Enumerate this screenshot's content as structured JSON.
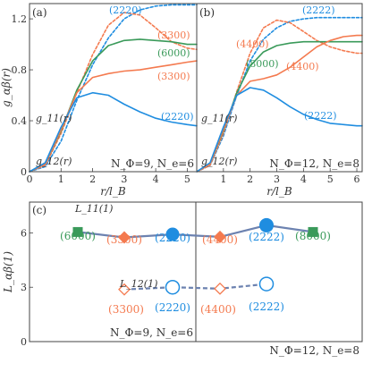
{
  "colors": {
    "blue": "#1f8de0",
    "orange": "#f47a4f",
    "green": "#3a9a5a",
    "slate": "#6c82b0",
    "axis": "#444444"
  },
  "chart_data": [
    {
      "type": "line",
      "panel": "(a)",
      "xlabel": "r/l_B",
      "ylabel": "g_αβ(r)",
      "xlim": [
        0,
        5.3
      ],
      "ylim": [
        0,
        1.32
      ],
      "xticks": [
        0,
        1,
        2,
        3,
        4,
        5
      ],
      "yticks": [
        0,
        0.4,
        0.8,
        1.2
      ],
      "ytick_labels": [
        "0",
        "0.4",
        "0.8",
        "1.2"
      ],
      "params": "N_Φ=9, N_e=6",
      "curve_labels": [
        "g_11(r)",
        "g_12(r)"
      ],
      "series": [
        {
          "name": "(2220)",
          "style": "dashed",
          "color": "blue",
          "x": [
            0,
            0.5,
            1,
            1.5,
            2,
            2.5,
            3,
            3.5,
            4,
            4.5,
            5,
            5.3
          ],
          "y": [
            0,
            0.04,
            0.24,
            0.56,
            0.84,
            1.05,
            1.2,
            1.27,
            1.3,
            1.31,
            1.31,
            1.31
          ]
        },
        {
          "name": "(3300)",
          "style": "dashed",
          "color": "orange",
          "x": [
            0,
            0.5,
            1,
            1.5,
            2,
            2.5,
            3,
            3.5,
            4,
            4.5,
            5,
            5.3
          ],
          "y": [
            0,
            0.05,
            0.3,
            0.62,
            0.92,
            1.15,
            1.25,
            1.23,
            1.13,
            1.02,
            0.97,
            0.96
          ]
        },
        {
          "name": "(6000)",
          "style": "solid",
          "color": "green",
          "x": [
            0,
            0.5,
            1,
            1.5,
            2,
            2.5,
            3,
            3.5,
            4,
            4.5,
            5,
            5.3
          ],
          "y": [
            0,
            0.06,
            0.32,
            0.64,
            0.87,
            0.99,
            1.03,
            1.04,
            1.03,
            1.02,
            1.0,
            1.0
          ]
        },
        {
          "name": "(3300)",
          "style": "solid",
          "color": "orange",
          "x": [
            0,
            0.5,
            1,
            1.5,
            2,
            2.5,
            3,
            3.5,
            4,
            4.5,
            5,
            5.3
          ],
          "y": [
            0,
            0.06,
            0.33,
            0.62,
            0.74,
            0.77,
            0.79,
            0.8,
            0.82,
            0.84,
            0.86,
            0.87
          ]
        },
        {
          "name": "(2220)",
          "style": "solid",
          "color": "blue",
          "x": [
            0,
            0.5,
            1,
            1.5,
            2,
            2.5,
            3,
            3.5,
            4,
            4.5,
            5,
            5.3
          ],
          "y": [
            0,
            0.07,
            0.35,
            0.58,
            0.62,
            0.6,
            0.53,
            0.47,
            0.42,
            0.39,
            0.37,
            0.36
          ]
        }
      ]
    },
    {
      "type": "line",
      "panel": "(b)",
      "xlabel": "r/l_B",
      "xlim": [
        0,
        6.2
      ],
      "ylim": [
        0,
        1.32
      ],
      "xticks": [
        1,
        2,
        3,
        4,
        5,
        6
      ],
      "params": "N_Φ=12, N_e=8",
      "curve_labels": [
        "g_11(r)",
        "g_12(r)"
      ],
      "series": [
        {
          "name": "(2222)",
          "style": "dashed",
          "color": "blue",
          "x": [
            0,
            0.5,
            1,
            1.5,
            2,
            2.5,
            3,
            3.5,
            4,
            4.5,
            5,
            5.5,
            6,
            6.2
          ],
          "y": [
            0,
            0.05,
            0.28,
            0.6,
            0.87,
            1.04,
            1.13,
            1.18,
            1.2,
            1.21,
            1.21,
            1.21,
            1.21,
            1.21
          ]
        },
        {
          "name": "(4400)",
          "style": "dashed",
          "color": "orange",
          "x": [
            0,
            0.5,
            1,
            1.5,
            2,
            2.5,
            3,
            3.5,
            4,
            4.5,
            5,
            5.5,
            6,
            6.2
          ],
          "y": [
            0,
            0.05,
            0.3,
            0.63,
            0.93,
            1.13,
            1.19,
            1.17,
            1.1,
            1.03,
            0.98,
            0.95,
            0.93,
            0.93
          ]
        },
        {
          "name": "(8000)",
          "style": "solid",
          "color": "green",
          "x": [
            0,
            0.5,
            1,
            1.5,
            2,
            2.5,
            3,
            3.5,
            4,
            4.5,
            5,
            5.5,
            6,
            6.2
          ],
          "y": [
            0,
            0.06,
            0.32,
            0.62,
            0.83,
            0.94,
            0.99,
            1.01,
            1.02,
            1.02,
            1.02,
            1.02,
            1.02,
            1.02
          ]
        },
        {
          "name": "(4400)",
          "style": "solid",
          "color": "orange",
          "x": [
            0,
            0.5,
            1,
            1.5,
            2,
            2.5,
            3,
            3.5,
            4,
            4.5,
            5,
            5.5,
            6,
            6.2
          ],
          "y": [
            0,
            0.06,
            0.33,
            0.6,
            0.71,
            0.73,
            0.76,
            0.82,
            0.9,
            0.98,
            1.03,
            1.06,
            1.07,
            1.07
          ]
        },
        {
          "name": "(2222)",
          "style": "solid",
          "color": "blue",
          "x": [
            0,
            0.5,
            1,
            1.5,
            2,
            2.5,
            3,
            3.5,
            4,
            4.5,
            5,
            5.5,
            6,
            6.2
          ],
          "y": [
            0,
            0.07,
            0.35,
            0.6,
            0.66,
            0.64,
            0.58,
            0.51,
            0.45,
            0.41,
            0.38,
            0.37,
            0.36,
            0.36
          ]
        }
      ]
    },
    {
      "type": "scatter",
      "panel": "(c)",
      "ylabel": "L_αβ(1)",
      "ylim": [
        0,
        7.7
      ],
      "yticks": [
        0,
        3,
        6
      ],
      "ytick_labels": [
        "0",
        "3",
        "6"
      ],
      "categories": [
        "(6000)",
        "(3300)",
        "(2220)",
        "(4400)",
        "(2222)",
        "(8000)"
      ],
      "params_left": "N_Φ=9, N_e=6",
      "params_right": "N_Φ=12, N_e=8",
      "series": [
        {
          "name": "L_11(1)",
          "style": "solid",
          "values": [
            6.05,
            5.75,
            5.92,
            5.78,
            6.42,
            6.05
          ],
          "markers": [
            "square",
            "diamond",
            "circle",
            "diamond",
            "circle",
            "square"
          ],
          "colors": [
            "green",
            "orange",
            "blue",
            "orange",
            "blue",
            "green"
          ]
        },
        {
          "name": "L_12(1)",
          "style": "dashed",
          "values": [
            null,
            2.88,
            3.0,
            2.92,
            3.18,
            null
          ],
          "markers": [
            null,
            "diamond-open",
            "circle-open",
            "diamond-open",
            "circle-open",
            null
          ],
          "colors": [
            null,
            "orange",
            "blue",
            "orange",
            "blue",
            null
          ]
        }
      ]
    }
  ]
}
